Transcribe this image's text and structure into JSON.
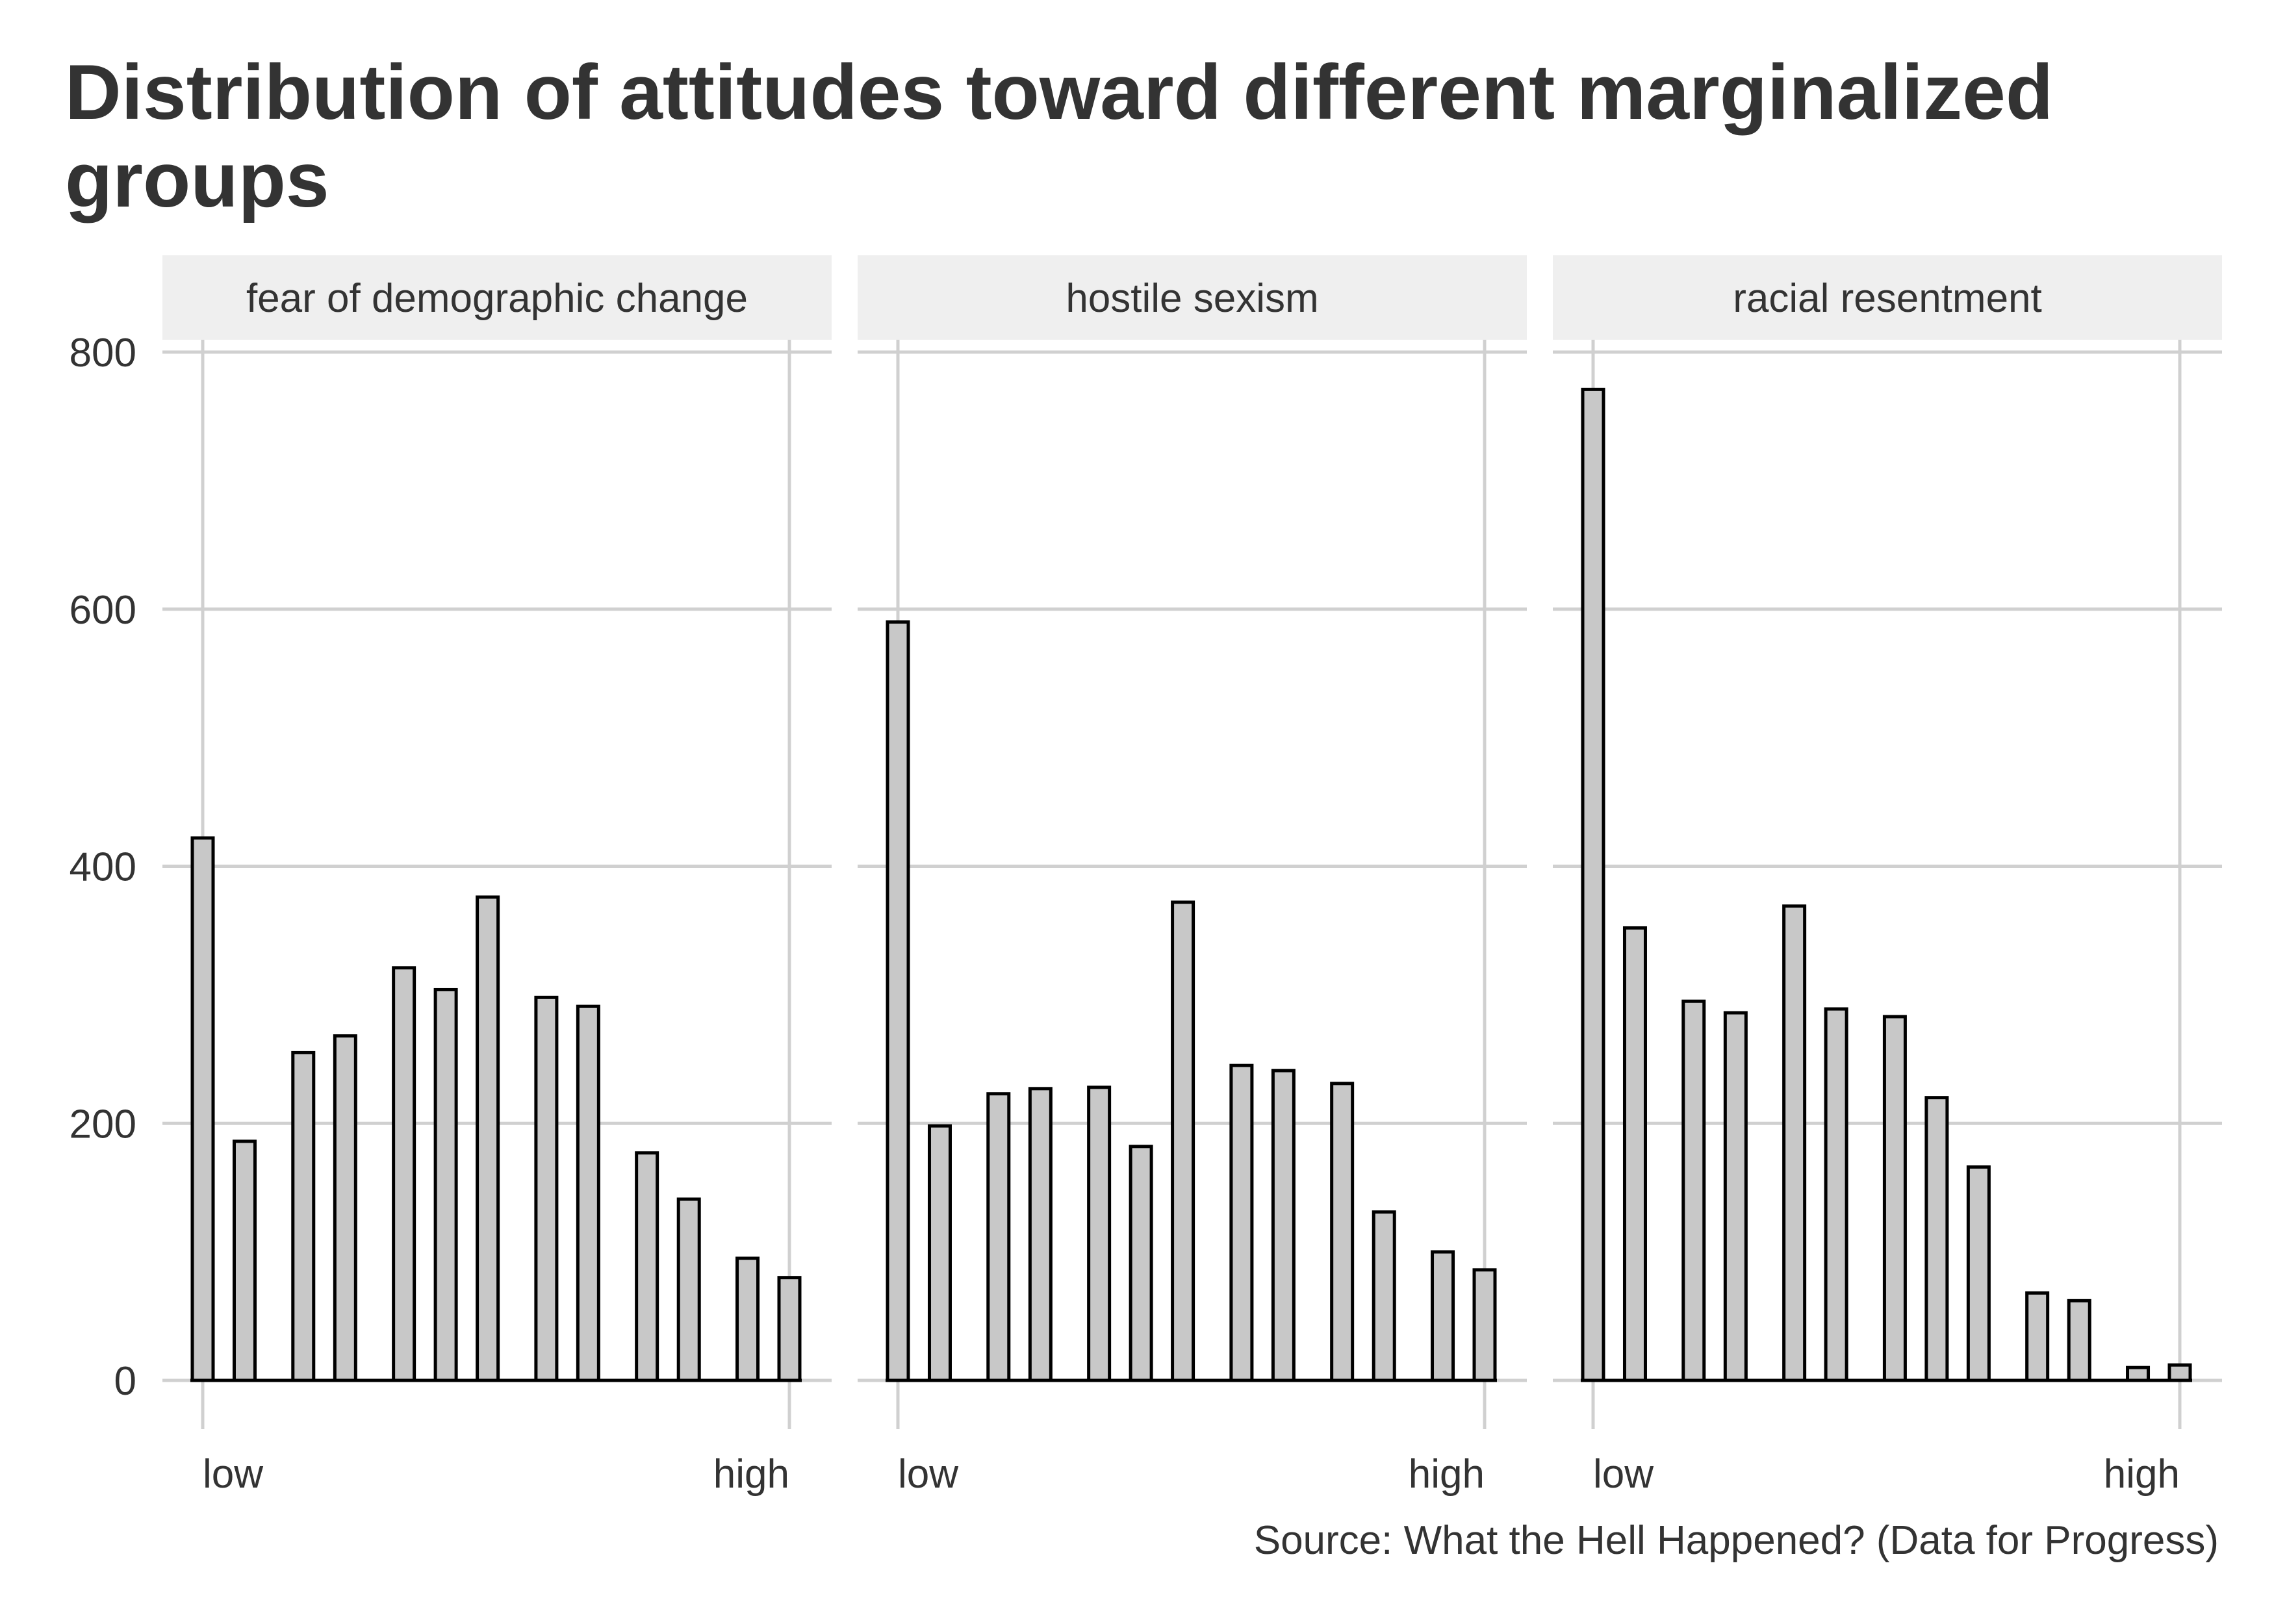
{
  "chart_data": {
    "type": "bar",
    "title": "Distribution of attitudes toward different marginalized groups",
    "caption": "Source: What the Hell Happened? (Data for Progress)",
    "xlabel": "",
    "ylabel": "",
    "x_tick_labels": [
      "low",
      "high"
    ],
    "y_ticks": [
      0,
      200,
      400,
      600,
      800
    ],
    "ylim": [
      0,
      800
    ],
    "grid": true,
    "colors": {
      "bar_fill": "#c8c8c8",
      "bar_stroke": "#000000",
      "grid": "#d0d0d0",
      "strip_bg": "#efefef",
      "text": "#333333"
    },
    "panels": [
      {
        "name": "fear of demographic change",
        "x": [
          0.0,
          0.0714,
          0.1714,
          0.2429,
          0.3429,
          0.4143,
          0.4857,
          0.5857,
          0.6571,
          0.7571,
          0.8286,
          0.9286,
          1.0
        ],
        "values": [
          422,
          186,
          255,
          268,
          321,
          304,
          376,
          298,
          291,
          177,
          141,
          95,
          80
        ]
      },
      {
        "name": "hostile sexism",
        "x": [
          0.0,
          0.0714,
          0.1714,
          0.2429,
          0.3429,
          0.4143,
          0.4857,
          0.5857,
          0.6571,
          0.7571,
          0.8286,
          0.9286,
          1.0
        ],
        "values": [
          590,
          198,
          223,
          227,
          228,
          182,
          372,
          245,
          241,
          231,
          131,
          100,
          86
        ]
      },
      {
        "name": "racial resentment",
        "x": [
          0.0,
          0.0714,
          0.1714,
          0.2429,
          0.3429,
          0.4143,
          0.5143,
          0.5857,
          0.6571,
          0.7571,
          0.8286,
          0.9286,
          1.0
        ],
        "values": [
          771,
          352,
          295,
          286,
          369,
          289,
          283,
          220,
          166,
          68,
          62,
          10,
          12
        ]
      }
    ]
  }
}
